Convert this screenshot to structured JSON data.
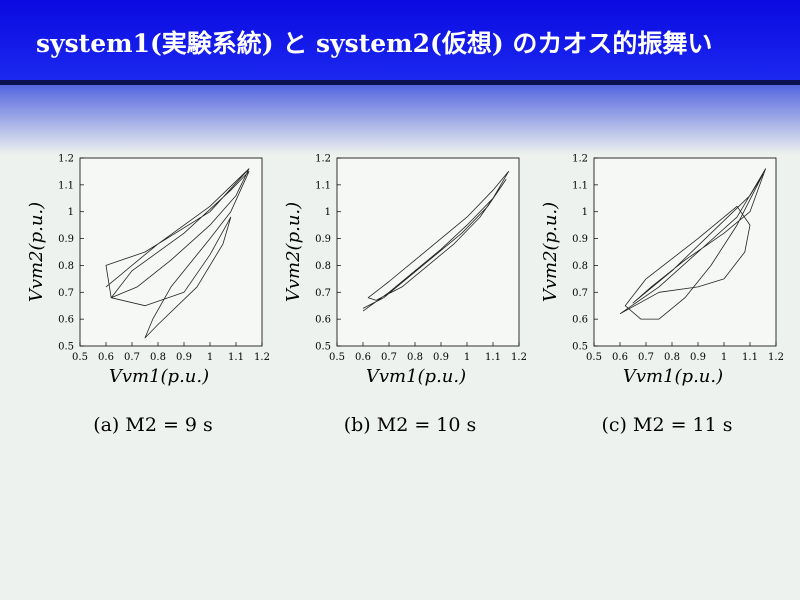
{
  "title": "system1(実験系統) と system2(仮想) のカオス的振舞い",
  "chart_data": [
    {
      "type": "line",
      "caption": "(a) M2 = 9 s",
      "xlabel": "Vvm1(p.u.)",
      "ylabel": "Vvm2(p.u.)",
      "color": "#222222",
      "xlim": [
        0.5,
        1.2
      ],
      "xticks": [
        0.5,
        0.6,
        0.7,
        0.8,
        0.9,
        1,
        1.1,
        1.2
      ],
      "ylim": [
        0.5,
        1.2
      ],
      "yticks": [
        0.5,
        0.6,
        0.7,
        0.8,
        0.9,
        1,
        1.1,
        1.2
      ],
      "x": [
        0.6,
        0.8,
        1.0,
        1.15,
        1.1,
        1.0,
        0.85,
        0.72,
        0.62,
        0.7,
        0.9,
        1.08,
        1.15,
        1.08,
        1.0,
        0.85,
        0.78,
        0.75,
        0.8,
        0.95,
        1.05,
        1.08,
        1.0,
        0.9,
        0.75,
        0.62,
        0.6,
        0.75,
        1.0,
        1.15
      ],
      "values": [
        0.72,
        0.88,
        1.02,
        1.16,
        1.06,
        0.95,
        0.82,
        0.72,
        0.68,
        0.78,
        0.92,
        1.08,
        1.15,
        1.0,
        0.9,
        0.72,
        0.6,
        0.53,
        0.58,
        0.72,
        0.88,
        0.98,
        0.84,
        0.7,
        0.65,
        0.68,
        0.8,
        0.85,
        1.0,
        1.16
      ]
    },
    {
      "type": "line",
      "caption": "(b) M2 = 10 s",
      "xlabel": "Vvm1(p.u.)",
      "ylabel": "Vvm2(p.u.)",
      "color": "#222222",
      "xlim": [
        0.5,
        1.2
      ],
      "xticks": [
        0.5,
        0.6,
        0.7,
        0.8,
        0.9,
        1,
        1.1,
        1.2
      ],
      "ylim": [
        0.5,
        1.2
      ],
      "yticks": [
        0.5,
        0.6,
        0.7,
        0.8,
        0.9,
        1,
        1.1,
        1.2
      ],
      "x": [
        0.6,
        0.7,
        0.8,
        0.9,
        1.0,
        1.1,
        1.16,
        1.1,
        1.0,
        0.9,
        0.8,
        0.7,
        0.62,
        0.65,
        0.75,
        0.85,
        0.95,
        1.05,
        1.15,
        1.08,
        0.98,
        0.88,
        0.78,
        0.68,
        0.6
      ],
      "values": [
        0.63,
        0.7,
        0.78,
        0.86,
        0.95,
        1.05,
        1.15,
        1.08,
        0.98,
        0.9,
        0.82,
        0.74,
        0.68,
        0.67,
        0.72,
        0.8,
        0.88,
        0.98,
        1.12,
        1.02,
        0.92,
        0.84,
        0.76,
        0.68,
        0.64
      ]
    },
    {
      "type": "line",
      "caption": "(c) M2 = 11 s",
      "xlabel": "Vvm1(p.u.)",
      "ylabel": "Vvm2(p.u.)",
      "color": "#222222",
      "xlim": [
        0.5,
        1.2
      ],
      "xticks": [
        0.5,
        0.6,
        0.7,
        0.8,
        0.9,
        1,
        1.1,
        1.2
      ],
      "ylim": [
        0.5,
        1.2
      ],
      "yticks": [
        0.5,
        0.6,
        0.7,
        0.8,
        0.9,
        1,
        1.1,
        1.2
      ],
      "x": [
        0.6,
        0.75,
        0.9,
        1.05,
        1.16,
        1.1,
        1.0,
        0.85,
        0.72,
        0.65,
        0.8,
        0.95,
        1.1,
        1.15,
        1.05,
        0.95,
        0.85,
        0.75,
        0.68,
        0.62,
        0.7,
        0.9,
        1.05,
        1.1,
        1.08,
        1.0,
        0.9,
        0.75,
        0.6
      ],
      "values": [
        0.62,
        0.72,
        0.85,
        0.98,
        1.16,
        1.0,
        0.92,
        0.82,
        0.72,
        0.66,
        0.78,
        0.92,
        1.06,
        1.14,
        0.95,
        0.8,
        0.68,
        0.6,
        0.6,
        0.65,
        0.75,
        0.9,
        1.02,
        0.95,
        0.85,
        0.75,
        0.72,
        0.7,
        0.62
      ]
    }
  ]
}
